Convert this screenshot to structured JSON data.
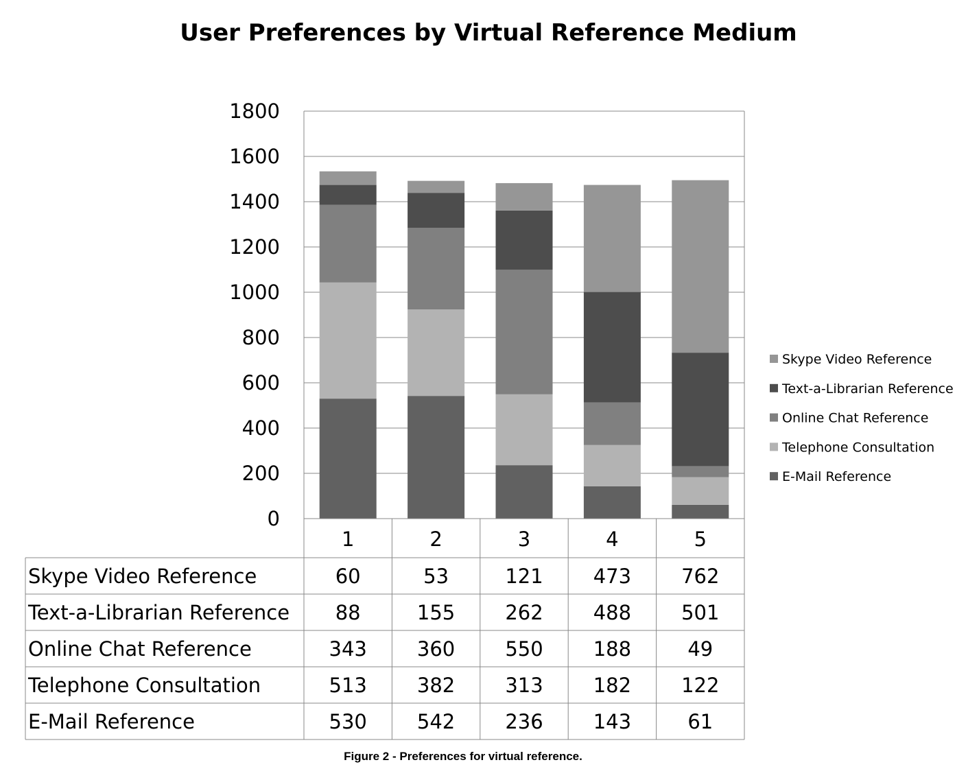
{
  "chart_data": {
    "type": "bar",
    "stacked": true,
    "title": "User Preferences by Virtual Reference Medium",
    "caption": "Figure 2 - Preferences for virtual reference.",
    "categories": [
      "1",
      "2",
      "3",
      "4",
      "5"
    ],
    "ylim": [
      0,
      1800
    ],
    "yticks": [
      0,
      200,
      400,
      600,
      800,
      1000,
      1200,
      1400,
      1600,
      1800
    ],
    "grid": true,
    "legend_position": "right",
    "series": [
      {
        "name": "E-Mail Reference",
        "values": [
          530,
          542,
          236,
          143,
          61
        ],
        "color": "#616161"
      },
      {
        "name": "Telephone Consultation",
        "values": [
          513,
          382,
          313,
          182,
          122
        ],
        "color": "#b3b3b3"
      },
      {
        "name": "Online Chat Reference",
        "values": [
          343,
          360,
          550,
          188,
          49
        ],
        "color": "#808080"
      },
      {
        "name": "Text-a-Librarian Reference",
        "values": [
          88,
          155,
          262,
          488,
          501
        ],
        "color": "#4d4d4d"
      },
      {
        "name": "Skype Video Reference",
        "values": [
          60,
          53,
          121,
          473,
          762
        ],
        "color": "#969696"
      }
    ]
  }
}
